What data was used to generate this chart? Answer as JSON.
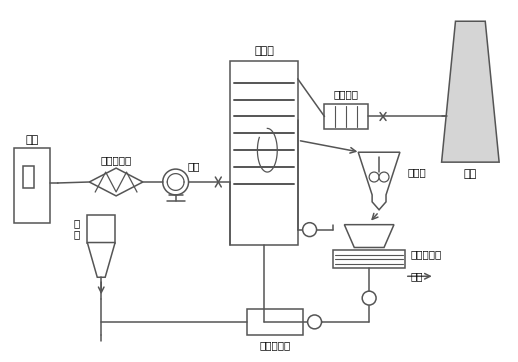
{
  "bg_color": "#ffffff",
  "line_color": "#555555",
  "labels": {
    "boiler": "锅炉",
    "esp": "电除尘装置",
    "fan": "风机",
    "absorber": "吸收塔",
    "heater": "加热装置",
    "chimney": "烟囱",
    "mixer": "搅拌槽",
    "separator": "渣水分离器",
    "solid": "固体",
    "lime": "石\n灰",
    "lime_pool": "石灰浆液池"
  }
}
